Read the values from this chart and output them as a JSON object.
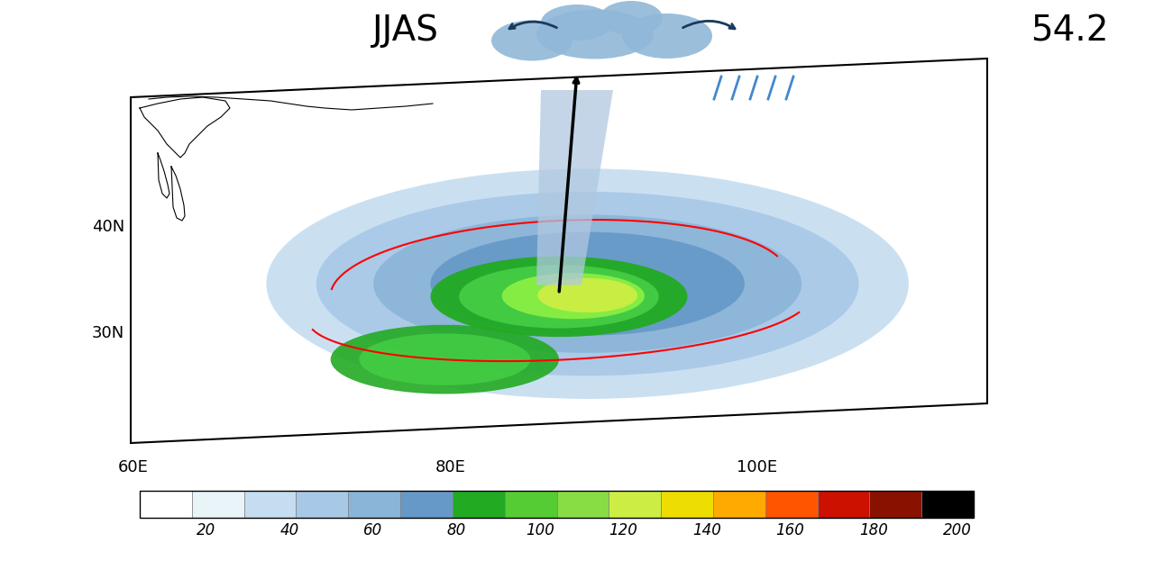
{
  "title": "JJAS",
  "title2": "54.2",
  "colorbar_labels": [
    20,
    40,
    60,
    80,
    100,
    120,
    140,
    160,
    180,
    200
  ],
  "colorbar_colors": [
    "#ffffff",
    "#e8f4f8",
    "#c5ddf0",
    "#a8c8e8",
    "#8ab4d8",
    "#6699c8",
    "#22aa22",
    "#44cc44",
    "#88ee44",
    "#ccee44",
    "#eedd00",
    "#ffaa00",
    "#ff6600",
    "#dd2200",
    "#aa0000",
    "#000000"
  ],
  "axis_labels": {
    "bottom": [
      "60E",
      "80E",
      "100E"
    ],
    "left": [
      "40N",
      "30N"
    ]
  },
  "background_color": "#ffffff",
  "map_bg": "#ffffff"
}
